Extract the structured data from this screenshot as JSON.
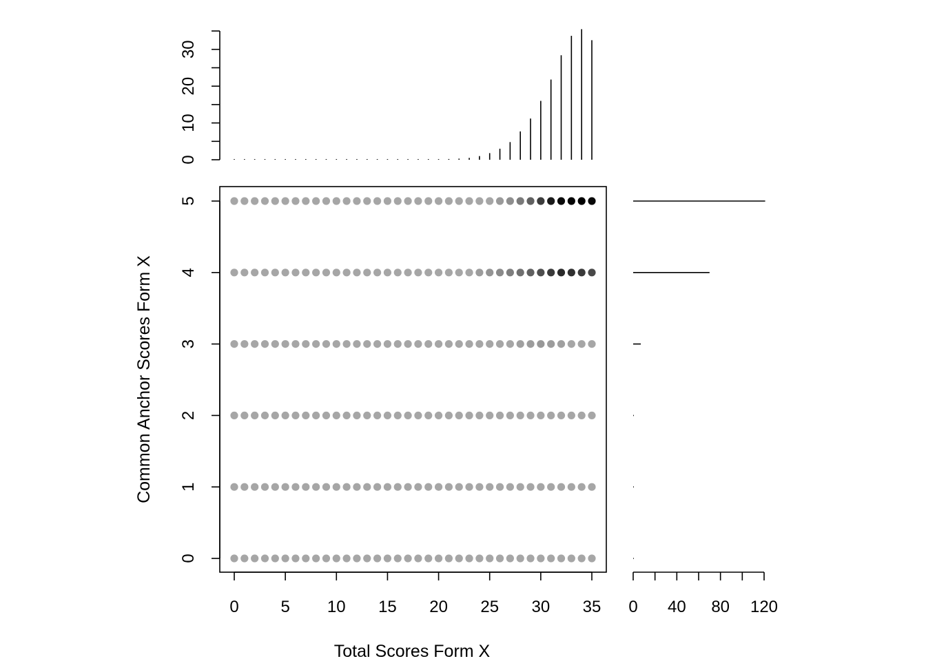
{
  "chart_data": [
    {
      "panel": "main",
      "type": "scatter",
      "xlabel": "Total Scores Form X",
      "ylabel": "Common Anchor Scores Form X",
      "xlim": [
        0,
        35
      ],
      "ylim": [
        0,
        5
      ],
      "x_ticks": [
        0,
        5,
        10,
        15,
        20,
        25,
        30,
        35
      ],
      "y_ticks": [
        0,
        1,
        2,
        3,
        4,
        5
      ],
      "point_colors": {
        "base": "#a6a6a6",
        "row_5": {
          "26": "#9a9a9a",
          "27": "#8e8e8e",
          "28": "#7a7a7a",
          "29": "#606060",
          "30": "#3c3c3c",
          "31": "#1a1a1a",
          "32": "#0a0a0a",
          "33": "#050505",
          "34": "#000000",
          "35": "#080808"
        },
        "row_4": {
          "24": "#9c9c9c",
          "25": "#949494",
          "26": "#8a8a8a",
          "27": "#7e7e7e",
          "28": "#707070",
          "29": "#606060",
          "30": "#4e4e4e",
          "31": "#3a3a3a",
          "32": "#2a2a2a",
          "33": "#303030",
          "34": "#3a3a3a",
          "35": "#484848"
        },
        "row_3": {
          "28": "#a0a0a0",
          "29": "#9c9c9c",
          "30": "#989898",
          "31": "#9c9c9c",
          "32": "#a0a0a0"
        }
      }
    },
    {
      "panel": "top-marginal",
      "type": "bar",
      "x": [
        0,
        1,
        2,
        3,
        4,
        5,
        6,
        7,
        8,
        9,
        10,
        11,
        12,
        13,
        14,
        15,
        16,
        17,
        18,
        19,
        20,
        21,
        22,
        23,
        24,
        25,
        26,
        27,
        28,
        29,
        30,
        31,
        32,
        33,
        34,
        35
      ],
      "values": [
        0,
        0,
        0,
        0,
        0,
        0,
        0,
        0,
        0,
        0,
        0,
        0,
        0,
        0,
        0,
        0,
        0,
        0,
        0,
        0.05,
        0.1,
        0.2,
        0.3,
        0.5,
        1.0,
        1.8,
        3.0,
        4.8,
        7.7,
        11.2,
        16.0,
        21.8,
        28.4,
        33.7,
        35.5,
        32.5
      ],
      "ylim": [
        0,
        35
      ],
      "y_ticks": [
        0,
        10,
        20,
        30
      ]
    },
    {
      "panel": "right-marginal",
      "type": "bar",
      "orientation": "horizontal",
      "categories": [
        0,
        1,
        2,
        3,
        4,
        5
      ],
      "values": [
        0.2,
        0.3,
        0.5,
        7,
        70,
        121
      ],
      "xlim": [
        0,
        120
      ],
      "x_ticks": [
        0,
        40,
        80,
        120
      ],
      "x_labels": [
        "0",
        "40",
        "80",
        "120"
      ]
    }
  ]
}
